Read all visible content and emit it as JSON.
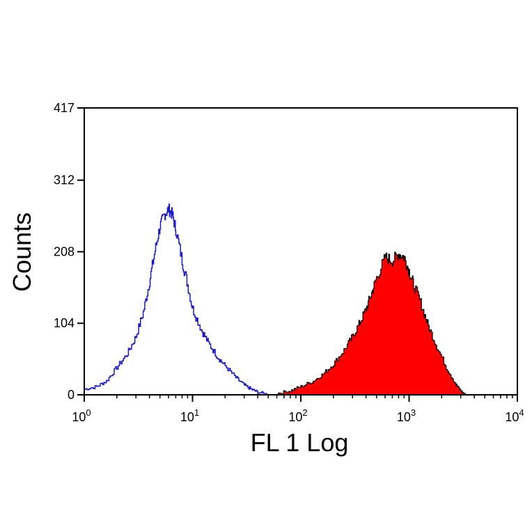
{
  "chart_data": {
    "type": "area",
    "xlabel": "FL 1 Log",
    "ylabel": "Counts",
    "x_scale": "log",
    "xlim": [
      1,
      10000
    ],
    "ylim": [
      0,
      417
    ],
    "x_ticks": [
      {
        "value": 1,
        "base": "10",
        "exp": "0"
      },
      {
        "value": 10,
        "base": "10",
        "exp": "1"
      },
      {
        "value": 100,
        "base": "10",
        "exp": "2"
      },
      {
        "value": 1000,
        "base": "10",
        "exp": "3"
      },
      {
        "value": 10000,
        "base": "10",
        "exp": "4"
      }
    ],
    "y_ticks": [
      0,
      104,
      208,
      312,
      417
    ],
    "grid": false,
    "series": [
      {
        "style": "outline",
        "color": "#1a1acc",
        "x": [
          1.0,
          1.3,
          1.6,
          2.0,
          2.5,
          3.0,
          3.5,
          4.0,
          4.5,
          5.0,
          5.5,
          6.0,
          6.5,
          7.0,
          8.0,
          9.0,
          10.0,
          12.0,
          14.0,
          17.0,
          20.0,
          25.0,
          30.0,
          35.0,
          40.0,
          50.0
        ],
        "y": [
          8,
          12,
          20,
          40,
          60,
          85,
          120,
          165,
          210,
          245,
          262,
          270,
          262,
          240,
          195,
          160,
          125,
          95,
          75,
          55,
          42,
          25,
          14,
          8,
          4,
          0
        ]
      },
      {
        "style": "filled",
        "color": "#ff0000",
        "x": [
          60,
          80,
          100,
          130,
          160,
          200,
          250,
          300,
          350,
          400,
          450,
          500,
          600,
          700,
          800,
          900,
          1000,
          1100,
          1300,
          1500,
          1800,
          2200,
          2700,
          3000,
          3300
        ],
        "y": [
          2,
          6,
          12,
          20,
          30,
          45,
          65,
          85,
          105,
          125,
          148,
          170,
          200,
          195,
          205,
          200,
          180,
          160,
          130,
          100,
          70,
          40,
          15,
          6,
          0
        ]
      }
    ]
  }
}
